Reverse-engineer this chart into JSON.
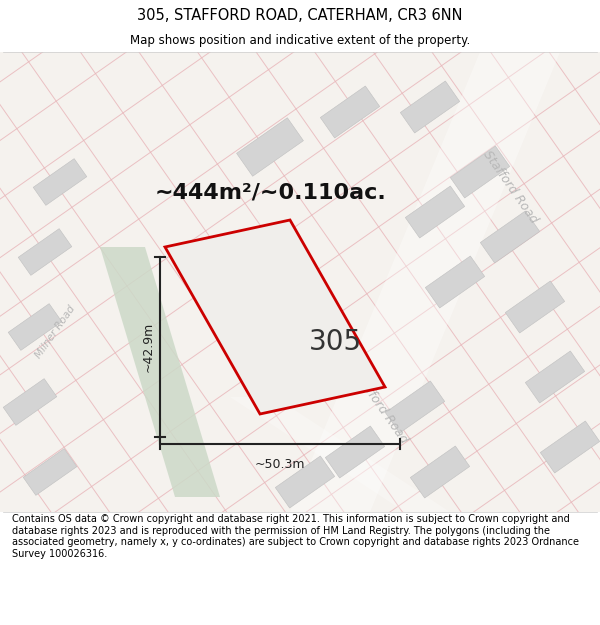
{
  "title": "305, STAFFORD ROAD, CATERHAM, CR3 6NN",
  "subtitle": "Map shows position and indicative extent of the property.",
  "footer": "Contains OS data © Crown copyright and database right 2021. This information is subject to Crown copyright and database rights 2023 and is reproduced with the permission of HM Land Registry. The polygons (including the associated geometry, namely x, y co-ordinates) are subject to Crown copyright and database rights 2023 Ordnance Survey 100026316.",
  "area_label": "~444m²/~0.110ac.",
  "width_label": "~50.3m",
  "height_label": "~42.9m",
  "property_number": "305",
  "bg_color": "#f5f2ee",
  "pink_line_color": "#e8b4b8",
  "building_color": "#d4d4d4",
  "building_edge": "#c0c0c0",
  "green_color": "#ccd9c8",
  "property_outline_color": "#cc0000",
  "property_fill_color": "#f0eeeb",
  "road_label_color": "#b8b8b8",
  "dim_color": "#222222",
  "title_fontsize": 10.5,
  "subtitle_fontsize": 8.5,
  "area_fontsize": 16,
  "num_fontsize": 20,
  "footer_fontsize": 7,
  "road_label_fontsize": 9
}
